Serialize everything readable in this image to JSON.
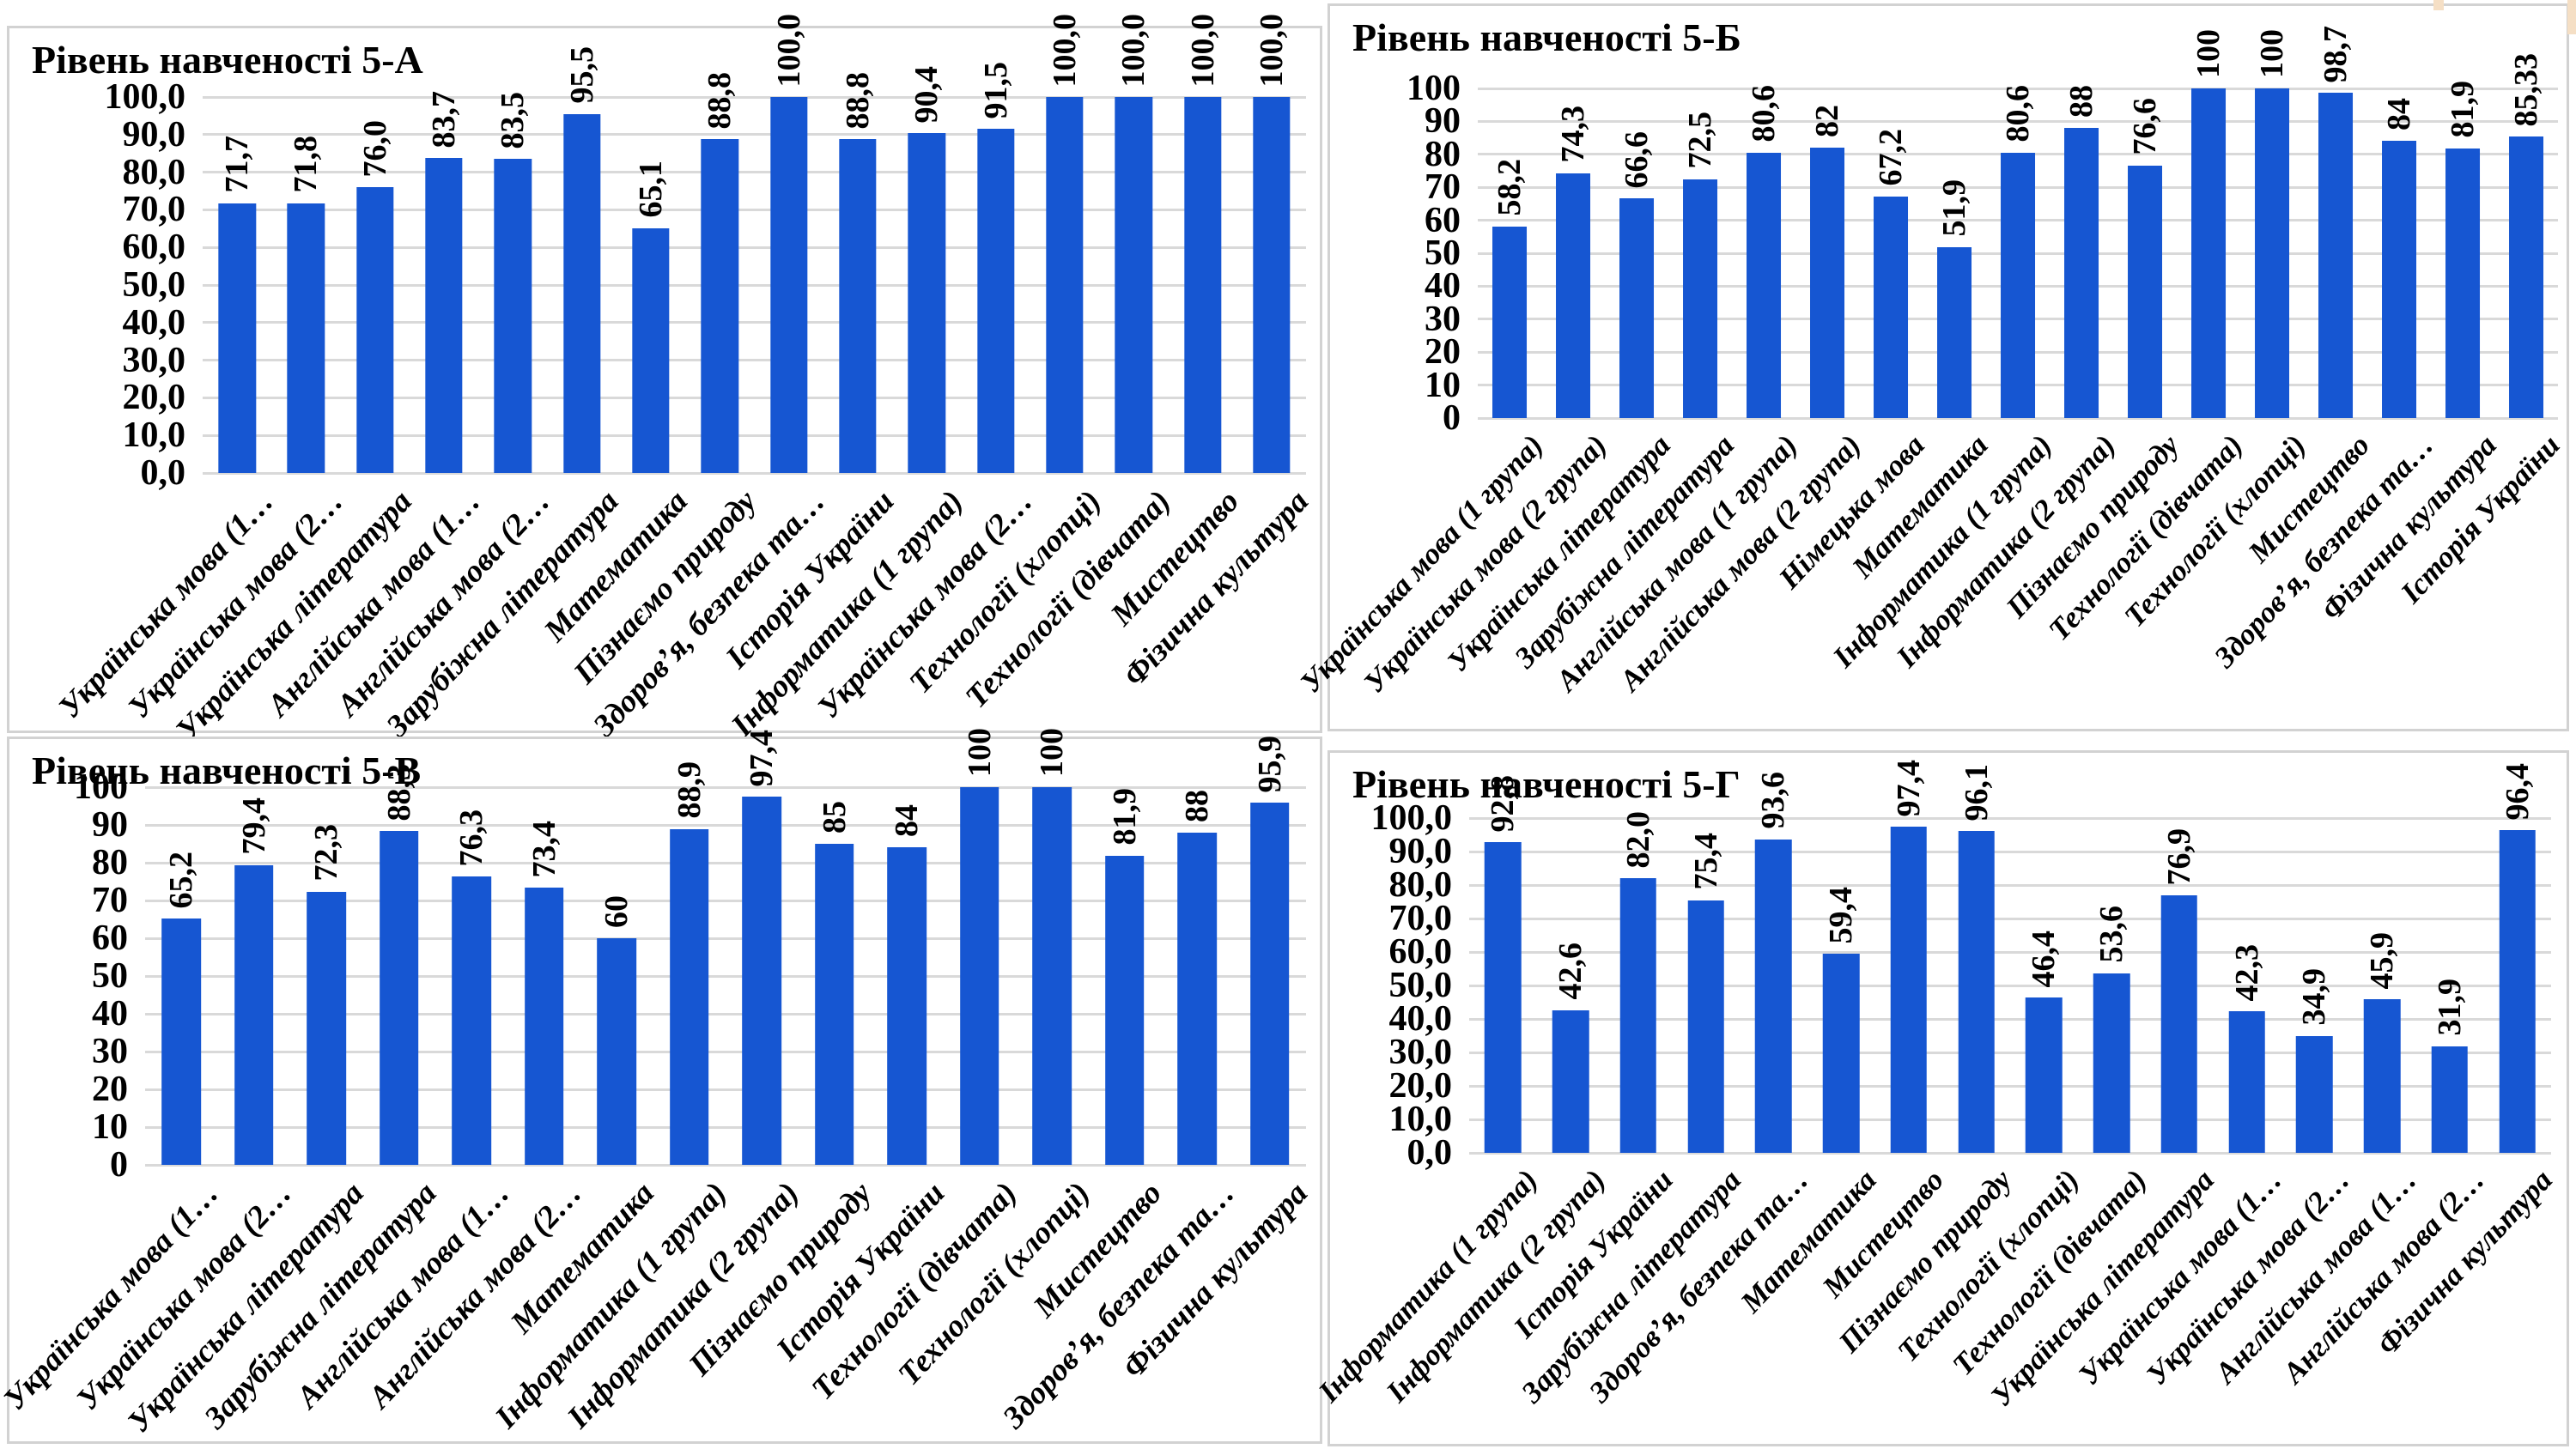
{
  "bar_color": "#1656d2",
  "gridline_color": "#d9d9d9",
  "panel_border_color": "#d2d2d2",
  "chart_data": [
    {
      "type": "bar",
      "title": "Рівень навченості 5-А",
      "ylim": [
        0,
        100
      ],
      "grid": true,
      "legend": "none",
      "y_ticks": [
        "100,0",
        "90,0",
        "80,0",
        "70,0",
        "60,0",
        "50,0",
        "40,0",
        "30,0",
        "20,0",
        "10,0",
        "0,0"
      ],
      "categories": [
        "Українська мова (1…",
        "Українська мова (2…",
        "Українська література",
        "Англійська мова (1…",
        "Англійська мова (2…",
        "Зарубіжна література",
        "Математика",
        "Пізнаємо природу",
        "Здоров’я, безпека та…",
        "Історія України",
        "Інформатика (1 група)",
        "Українська мова (2…",
        "Технології (хлопці)",
        "Технології (дівчата)",
        "Мистецтво",
        "Фізична культура"
      ],
      "values": [
        71.7,
        71.8,
        76.0,
        83.7,
        83.5,
        95.5,
        65.1,
        88.8,
        100,
        88.8,
        90.4,
        91.5,
        100,
        100,
        100,
        100
      ],
      "value_labels": [
        "71,7",
        "71,8",
        "76,0",
        "83,7",
        "83,5",
        "95,5",
        "65,1",
        "88,8",
        "100,0",
        "88,8",
        "90,4",
        "91,5",
        "100,0",
        "100,0",
        "100,0",
        "100,0"
      ]
    },
    {
      "type": "bar",
      "title": "Рівень навченості 5-Б",
      "ylim": [
        0,
        100
      ],
      "grid": true,
      "legend": "none",
      "y_ticks": [
        "100",
        "90",
        "80",
        "70",
        "60",
        "50",
        "40",
        "30",
        "20",
        "10",
        "0"
      ],
      "categories": [
        "Українська мова (1 група)",
        "Українська мова (2 група)",
        "Українська література",
        "Зарубіжна література",
        "Англійська мова (1 група)",
        "Англійська мова (2 група)",
        "Німецька мова",
        "Математика",
        "Інформатика (1 група)",
        "Інформатика (2 група)",
        "Пізнаємо природу",
        "Технології (дівчата)",
        "Технології (хлопці)",
        "Мистецтво",
        "Здоров’я, безпека та…",
        "Фізична культура",
        "Історія України"
      ],
      "values": [
        58.2,
        74.3,
        66.6,
        72.5,
        80.6,
        82,
        67.2,
        51.9,
        80.6,
        88,
        76.6,
        100,
        100,
        98.7,
        84,
        81.9,
        85.33
      ],
      "value_labels": [
        "58,2",
        "74,3",
        "66,6",
        "72,5",
        "80,6",
        "82",
        "67,2",
        "51,9",
        "80,6",
        "88",
        "76,6",
        "100",
        "100",
        "98,7",
        "84",
        "81,9",
        "85,33"
      ]
    },
    {
      "type": "bar",
      "title": "Рівень навченості 5-В",
      "ylim": [
        0,
        100
      ],
      "grid": true,
      "legend": "none",
      "y_ticks": [
        "100",
        "90",
        "80",
        "70",
        "60",
        "50",
        "40",
        "30",
        "20",
        "10",
        "0"
      ],
      "categories": [
        "Українська мова (1…",
        "Українська мова (2…",
        "Українська література",
        "Зарубіжна література",
        "Англійська мова (1…",
        "Англійська мова (2…",
        "Математика",
        "Інформатика (1 група)",
        "Інформатика (2 група)",
        "Пізнаємо природу",
        "Історія України",
        "Технології (дівчата)",
        "Технології (хлопці)",
        "Мистецтво",
        "Здоров’я, безпека та…",
        "Фізична культура"
      ],
      "values": [
        65.2,
        79.4,
        72.3,
        88.3,
        76.3,
        73.4,
        60,
        88.9,
        97.4,
        85,
        84,
        100,
        100,
        81.9,
        88,
        95.9
      ],
      "value_labels": [
        "65,2",
        "79,4",
        "72,3",
        "88,3",
        "76,3",
        "73,4",
        "60",
        "88,9",
        "97,4",
        "85",
        "84",
        "100",
        "100",
        "81,9",
        "88",
        "95,9"
      ]
    },
    {
      "type": "bar",
      "title": "Рівень навченості 5-Г",
      "ylim": [
        0,
        100
      ],
      "grid": true,
      "legend": "none",
      "y_ticks": [
        "100,0",
        "90,0",
        "80,0",
        "70,0",
        "60,0",
        "50,0",
        "40,0",
        "30,0",
        "20,0",
        "10,0",
        "0,0"
      ],
      "categories": [
        "Інформатика (1 група)",
        "Інформатика (2 група)",
        "Історія України",
        "Зарубіжна література",
        "Здоров’я, безпека та…",
        "Математика",
        "Мистецтво",
        "Пізнаємо природу",
        "Технології (хлопці)",
        "Технології (дівчата)",
        "Українська література",
        "Українська мова (1…",
        "Українська мова (2…",
        "Англійська мова (1…",
        "Англійська мова (2…",
        "Фізична культура"
      ],
      "values": [
        92.8,
        42.6,
        82.0,
        75.4,
        93.6,
        59.4,
        97.4,
        96.1,
        46.4,
        53.6,
        76.9,
        42.3,
        34.9,
        45.9,
        31.9,
        96.4
      ],
      "value_labels": [
        "92,8",
        "42,6",
        "82,0",
        "75,4",
        "93,6",
        "59,4",
        "97,4",
        "96,1",
        "46,4",
        "53,6",
        "76,9",
        "42,3",
        "34,9",
        "45,9",
        "31,9",
        "96,4"
      ]
    }
  ]
}
